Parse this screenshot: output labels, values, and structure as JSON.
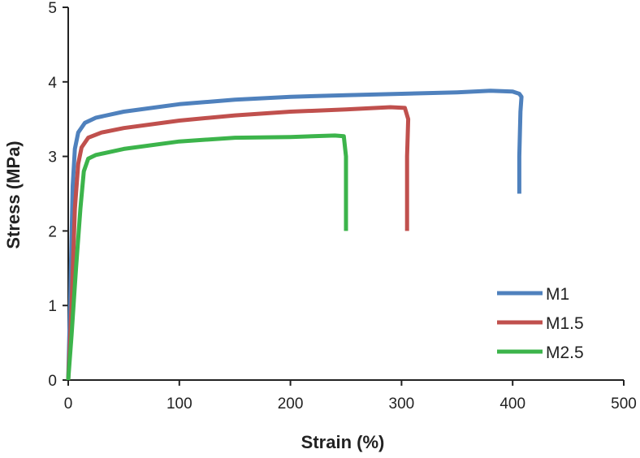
{
  "chart_data": {
    "type": "line",
    "title": "",
    "xlabel": "Strain (%)",
    "ylabel": "Stress (MPa)",
    "xlim": [
      0,
      500
    ],
    "ylim": [
      0,
      5
    ],
    "xticks": [
      0,
      100,
      200,
      300,
      400,
      500
    ],
    "yticks": [
      0,
      1,
      2,
      3,
      4,
      5
    ],
    "grid": false,
    "legend_position": "bottom-right",
    "series": [
      {
        "name": "M1",
        "color": "#4F81BD",
        "points": [
          [
            0,
            0
          ],
          [
            2,
            1.2
          ],
          [
            4,
            2.6
          ],
          [
            6,
            3.1
          ],
          [
            9,
            3.32
          ],
          [
            15,
            3.45
          ],
          [
            25,
            3.52
          ],
          [
            50,
            3.6
          ],
          [
            100,
            3.7
          ],
          [
            150,
            3.76
          ],
          [
            200,
            3.8
          ],
          [
            250,
            3.82
          ],
          [
            300,
            3.84
          ],
          [
            350,
            3.86
          ],
          [
            380,
            3.88
          ],
          [
            400,
            3.87
          ],
          [
            406,
            3.84
          ],
          [
            408,
            3.8
          ],
          [
            407,
            3.6
          ],
          [
            406,
            3.0
          ],
          [
            406,
            2.5
          ]
        ]
      },
      {
        "name": "M1.5",
        "color": "#C0504D",
        "points": [
          [
            0,
            0
          ],
          [
            3,
            1.0
          ],
          [
            6,
            2.3
          ],
          [
            9,
            2.9
          ],
          [
            12,
            3.12
          ],
          [
            18,
            3.25
          ],
          [
            30,
            3.32
          ],
          [
            50,
            3.38
          ],
          [
            100,
            3.48
          ],
          [
            150,
            3.55
          ],
          [
            200,
            3.6
          ],
          [
            250,
            3.63
          ],
          [
            290,
            3.66
          ],
          [
            303,
            3.65
          ],
          [
            306,
            3.5
          ],
          [
            305,
            3.0
          ],
          [
            305,
            2.5
          ],
          [
            305,
            2.0
          ]
        ]
      },
      {
        "name": "M2.5",
        "color": "#3CB44B",
        "points": [
          [
            0,
            0
          ],
          [
            3,
            0.6
          ],
          [
            7,
            1.5
          ],
          [
            11,
            2.3
          ],
          [
            14,
            2.8
          ],
          [
            18,
            2.97
          ],
          [
            25,
            3.02
          ],
          [
            50,
            3.1
          ],
          [
            100,
            3.2
          ],
          [
            150,
            3.25
          ],
          [
            200,
            3.26
          ],
          [
            220,
            3.27
          ],
          [
            240,
            3.28
          ],
          [
            248,
            3.27
          ],
          [
            250,
            3.0
          ],
          [
            250,
            2.5
          ],
          [
            250,
            2.0
          ]
        ]
      }
    ]
  }
}
